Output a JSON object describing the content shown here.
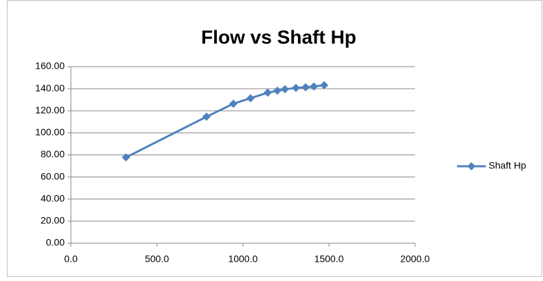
{
  "chart_data": {
    "type": "line",
    "title": "Flow vs Shaft Hp",
    "x": [
      320,
      788,
      944,
      1044,
      1144,
      1200,
      1244,
      1308,
      1364,
      1412,
      1472
    ],
    "series": [
      {
        "name": "Shaft Hp",
        "color": "#4f81bd",
        "values": [
          77.8,
          114.6,
          126.4,
          131.4,
          136.4,
          138.2,
          139.5,
          140.7,
          141.3,
          142.0,
          143.2
        ]
      }
    ],
    "xlim": [
      0,
      2000
    ],
    "xticks": [
      {
        "value": 0,
        "label": "0.0"
      },
      {
        "value": 500,
        "label": "500.0"
      },
      {
        "value": 1000,
        "label": "1000.0"
      },
      {
        "value": 1500,
        "label": "1500.0"
      },
      {
        "value": 2000,
        "label": "2000.0"
      }
    ],
    "ylim": [
      0,
      160
    ],
    "yticks": [
      {
        "value": 0,
        "label": "0.00"
      },
      {
        "value": 20,
        "label": "20.00"
      },
      {
        "value": 40,
        "label": "40.00"
      },
      {
        "value": 60,
        "label": "60.00"
      },
      {
        "value": 80,
        "label": "80.00"
      },
      {
        "value": 100,
        "label": "100.00"
      },
      {
        "value": 120,
        "label": "120.00"
      },
      {
        "value": 140,
        "label": "140.00"
      },
      {
        "value": 160,
        "label": "160.00"
      }
    ],
    "grid": true,
    "legend": "right"
  }
}
